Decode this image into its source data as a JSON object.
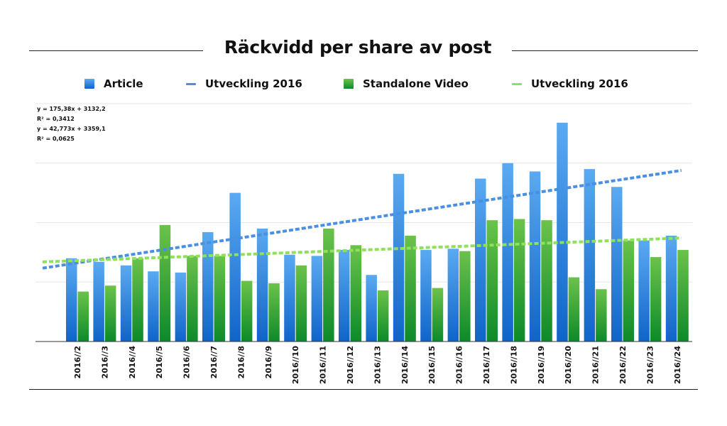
{
  "title": "Räckvidd per share av post",
  "legend": {
    "article": "Article",
    "article_trend": "Utveckling 2016",
    "video": "Standalone Video",
    "video_trend": "Utveckling 2016"
  },
  "equations": {
    "eq1": "y = 175,38x + 3132,2",
    "r1": "R² = 0,3412",
    "eq2": "y = 42,773x + 3359,1",
    "r2": "R² = 0,0625"
  },
  "colors": {
    "article_top": "#5aaaf2",
    "article_bottom": "#0f64c8",
    "video_top": "#6cc24a",
    "video_bottom": "#0c8a2a",
    "article_trend": "#4a90e2",
    "video_trend": "#8fe05a",
    "grid": "#e6e6e6",
    "axis": "#333333"
  },
  "chart_data": {
    "type": "bar",
    "categories": [
      "2016//2",
      "2016//3",
      "2016//4",
      "2016//5",
      "2016//6",
      "2016//7",
      "2016//8",
      "2016//9",
      "2016//10",
      "2016//11",
      "2016//12",
      "2016//13",
      "2016//14",
      "2016//15",
      "2016//16",
      "2016//17",
      "2016//18",
      "2016//19",
      "2016//20",
      "2016//21",
      "2016//22",
      "2016//23",
      "2016//24"
    ],
    "ylim": [
      0,
      10000
    ],
    "y_ticks_labeled": false,
    "grid": true,
    "legend_position": "top",
    "series": [
      {
        "name": "Article",
        "kind": "bar",
        "values": [
          3500,
          3350,
          3200,
          2950,
          2900,
          4600,
          6250,
          4750,
          3650,
          3600,
          3850,
          2800,
          7050,
          3850,
          3900,
          6850,
          7500,
          7150,
          9200,
          7250,
          6500,
          4250,
          4450
        ]
      },
      {
        "name": "Standalone Video",
        "kind": "bar",
        "values": [
          2100,
          2350,
          3500,
          4900,
          3600,
          3600,
          2550,
          2450,
          3200,
          4750,
          4050,
          2150,
          4450,
          2250,
          3800,
          5100,
          5150,
          5100,
          2700,
          2200,
          4250,
          3550,
          3850
        ]
      }
    ],
    "trendlines": [
      {
        "name": "Utveckling 2016",
        "series": "Article",
        "equation": "y = 175,38x + 3132,2",
        "r2": "R² = 0,3412",
        "slope": 175.38,
        "intercept": 3132.2
      },
      {
        "name": "Utveckling 2016",
        "series": "Standalone Video",
        "equation": "y = 42,773x + 3359,1",
        "r2": "R² = 0,0625",
        "slope": 42.773,
        "intercept": 3359.1
      }
    ]
  }
}
